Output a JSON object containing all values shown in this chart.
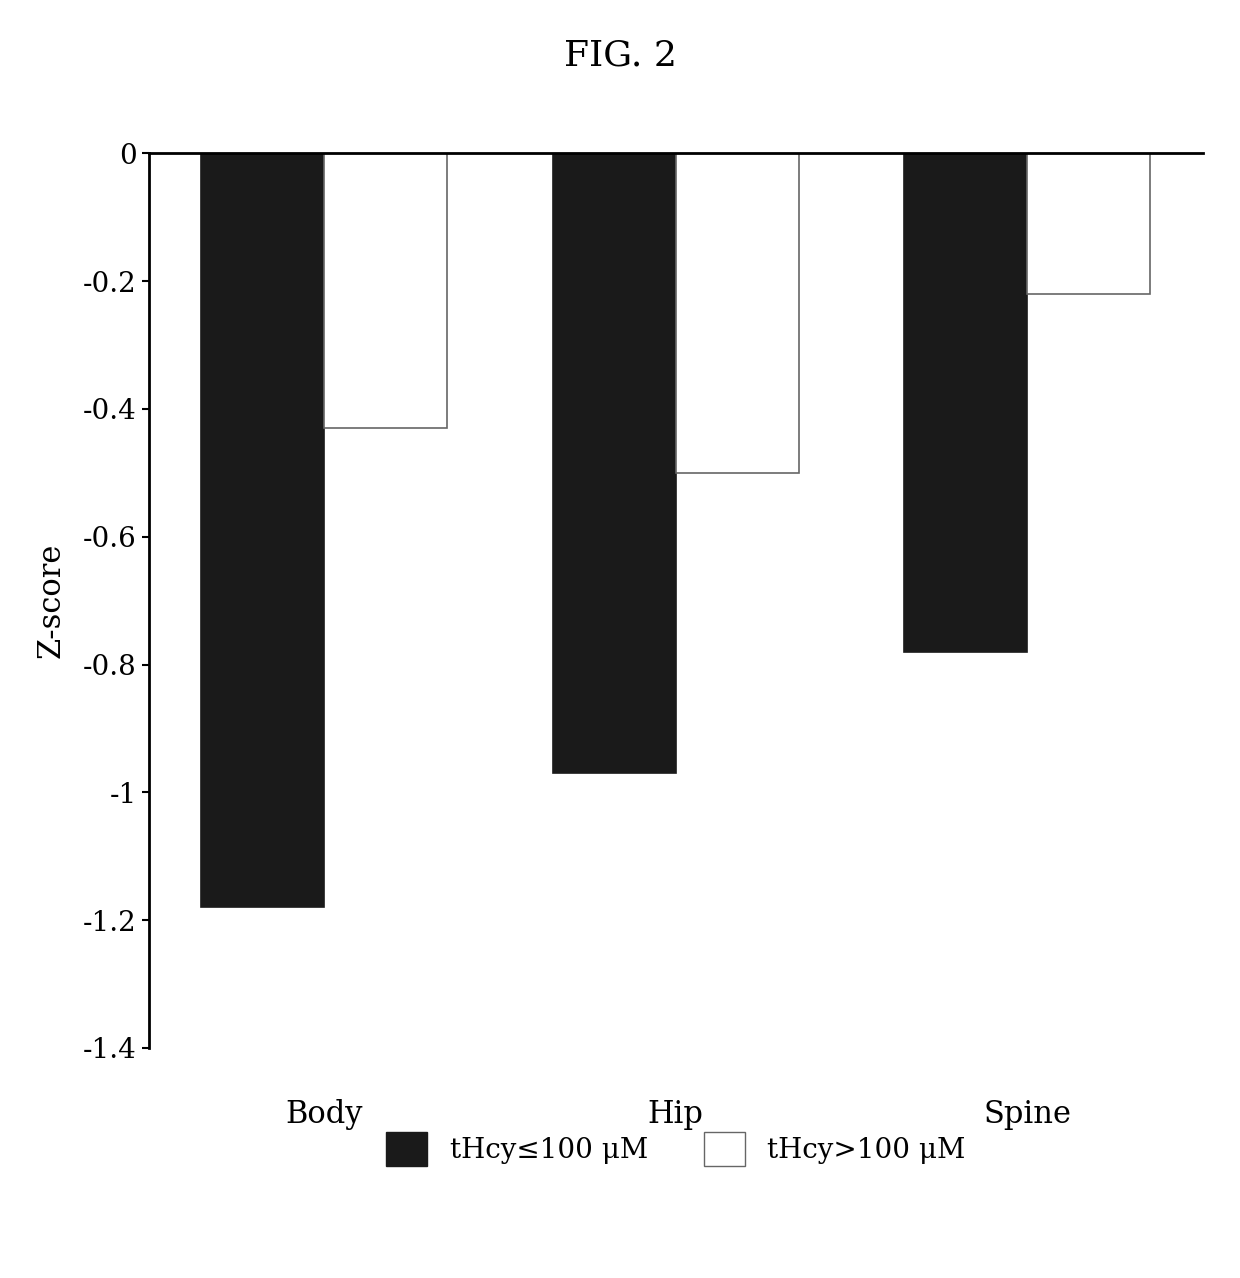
{
  "title": "FIG. 2",
  "categories": [
    "Body",
    "Hip",
    "Spine"
  ],
  "series1_label": "tHcy≤100 μM",
  "series2_label": "tHcy>100 μM",
  "series1_values": [
    -1.18,
    -0.97,
    -0.78
  ],
  "series2_values": [
    -0.43,
    -0.5,
    -0.22
  ],
  "series1_color": "#1a1a1a",
  "series2_color": "#ffffff",
  "series2_edgecolor": "#666666",
  "ylabel": "Z-score",
  "ylim": [
    -1.4,
    0.0
  ],
  "yticks": [
    0,
    -0.2,
    -0.4,
    -0.6,
    -0.8,
    -1.0,
    -1.2,
    -1.4
  ],
  "ytick_labels": [
    "0",
    "-0.2",
    "-0.4",
    "-0.6",
    "-0.8",
    "-1",
    "-1.2",
    "-1.4"
  ],
  "bar_width": 0.7,
  "group_positions": [
    1.0,
    3.0,
    5.0
  ],
  "background_color": "#ffffff",
  "title_fontsize": 26,
  "axis_label_fontsize": 22,
  "tick_fontsize": 20,
  "legend_fontsize": 20,
  "category_label_fontsize": 22
}
